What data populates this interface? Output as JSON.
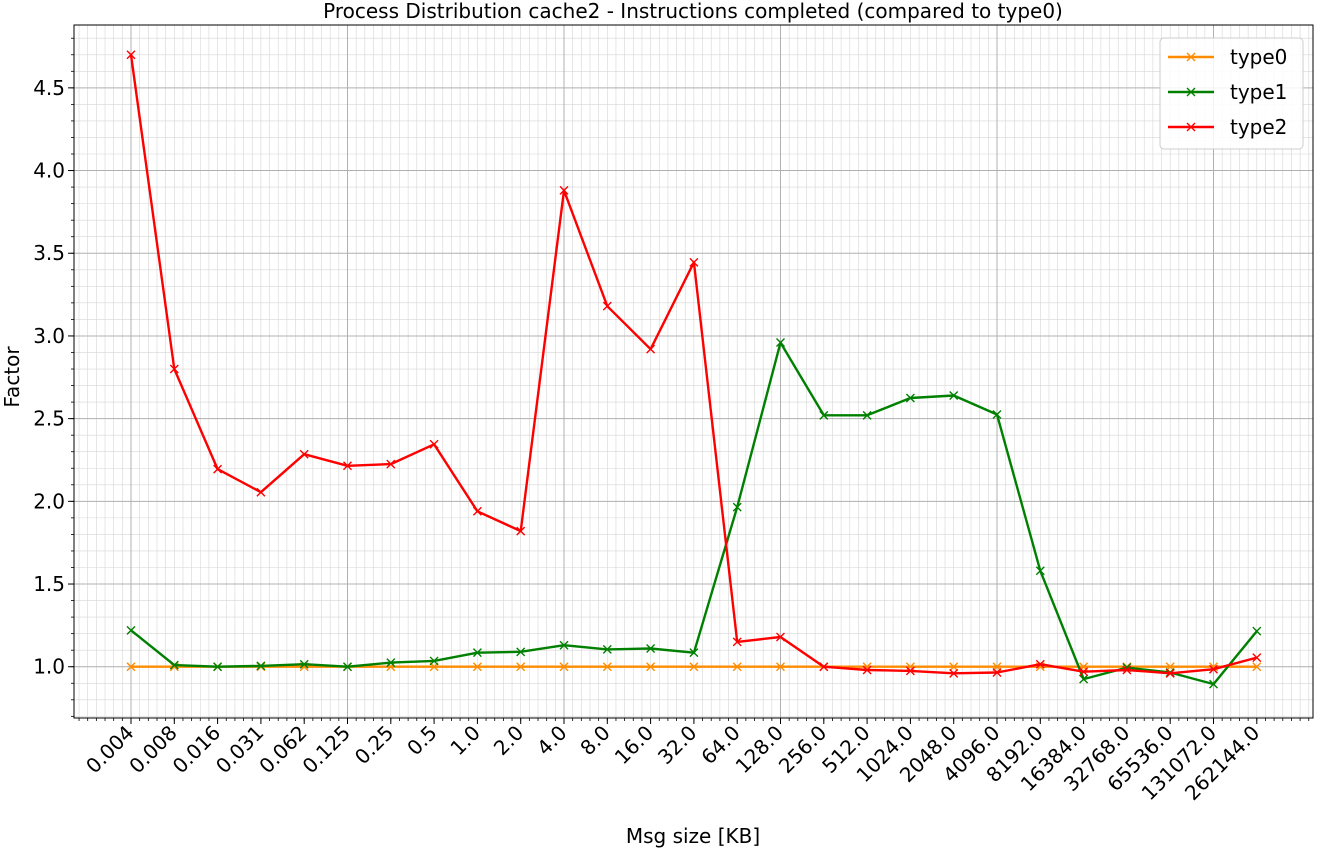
{
  "chart_data": {
    "type": "line",
    "title": "Process Distribution cache2 - Instructions completed (compared to type0)",
    "xlabel": "Msg size [KB]",
    "ylabel": "Factor",
    "categories": [
      "0.004",
      "0.008",
      "0.016",
      "0.031",
      "0.062",
      "0.125",
      "0.25",
      "0.5",
      "1.0",
      "2.0",
      "4.0",
      "8.0",
      "16.0",
      "32.0",
      "64.0",
      "128.0",
      "256.0",
      "512.0",
      "1024.0",
      "2048.0",
      "4096.0",
      "8192.0",
      "16384.0",
      "32768.0",
      "65536.0",
      "131072.0",
      "262144.0"
    ],
    "ylim": [
      0.69,
      4.88
    ],
    "yticks": [
      1.0,
      1.5,
      2.0,
      2.5,
      3.0,
      3.5,
      4.0,
      4.5
    ],
    "ytick_labels": [
      "1.0",
      "1.5",
      "2.0",
      "2.5",
      "3.0",
      "3.5",
      "4.0",
      "4.5"
    ],
    "grid": true,
    "legend_position": "top-right",
    "marker": "x",
    "series": [
      {
        "name": "type0",
        "color": "#ff8c00",
        "values": [
          1.0,
          1.0,
          1.0,
          1.0,
          1.0,
          1.0,
          1.0,
          1.0,
          1.0,
          1.0,
          1.0,
          1.0,
          1.0,
          1.0,
          1.0,
          1.0,
          1.0,
          1.0,
          1.0,
          1.0,
          1.0,
          1.0,
          1.0,
          1.0,
          1.0,
          1.0,
          1.0
        ]
      },
      {
        "name": "type1",
        "color": "#008000",
        "values": [
          1.22,
          1.01,
          1.0,
          1.005,
          1.015,
          1.0,
          1.025,
          1.035,
          1.085,
          1.09,
          1.13,
          1.105,
          1.11,
          1.085,
          1.965,
          2.96,
          2.52,
          2.52,
          2.625,
          2.64,
          2.525,
          1.58,
          0.925,
          0.995,
          0.965,
          0.895,
          1.215
        ]
      },
      {
        "name": "type2",
        "color": "#ff0000",
        "values": [
          4.7,
          2.8,
          2.195,
          2.055,
          2.285,
          2.215,
          2.225,
          2.345,
          1.94,
          1.82,
          3.88,
          3.18,
          2.92,
          3.445,
          1.15,
          1.18,
          1.0,
          0.98,
          0.975,
          0.96,
          0.965,
          1.015,
          0.97,
          0.98,
          0.96,
          0.985,
          1.055
        ]
      }
    ]
  }
}
